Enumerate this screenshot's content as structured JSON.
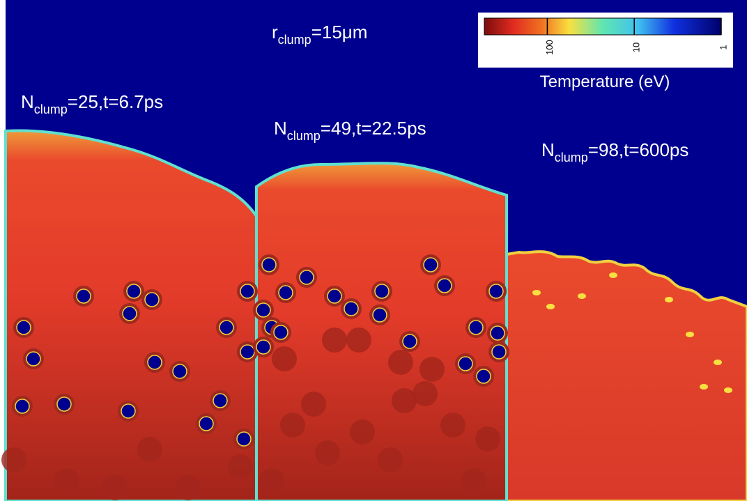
{
  "title": {
    "main": "r",
    "sub": "clump",
    "rest": "=15μm"
  },
  "panels": [
    {
      "main": "N",
      "sub": "clump",
      "rest": "=25,t=6.7ps"
    },
    {
      "main": "N",
      "sub": "clump",
      "rest": "=49,t=22.5ps"
    },
    {
      "main": "N",
      "sub": "clump",
      "rest": "=98,t=600ps"
    }
  ],
  "colorbar": {
    "label": "Temperature (eV)",
    "lim": [
      530,
      1
    ],
    "ticks": [
      100,
      10,
      1
    ],
    "log": true
  }
}
